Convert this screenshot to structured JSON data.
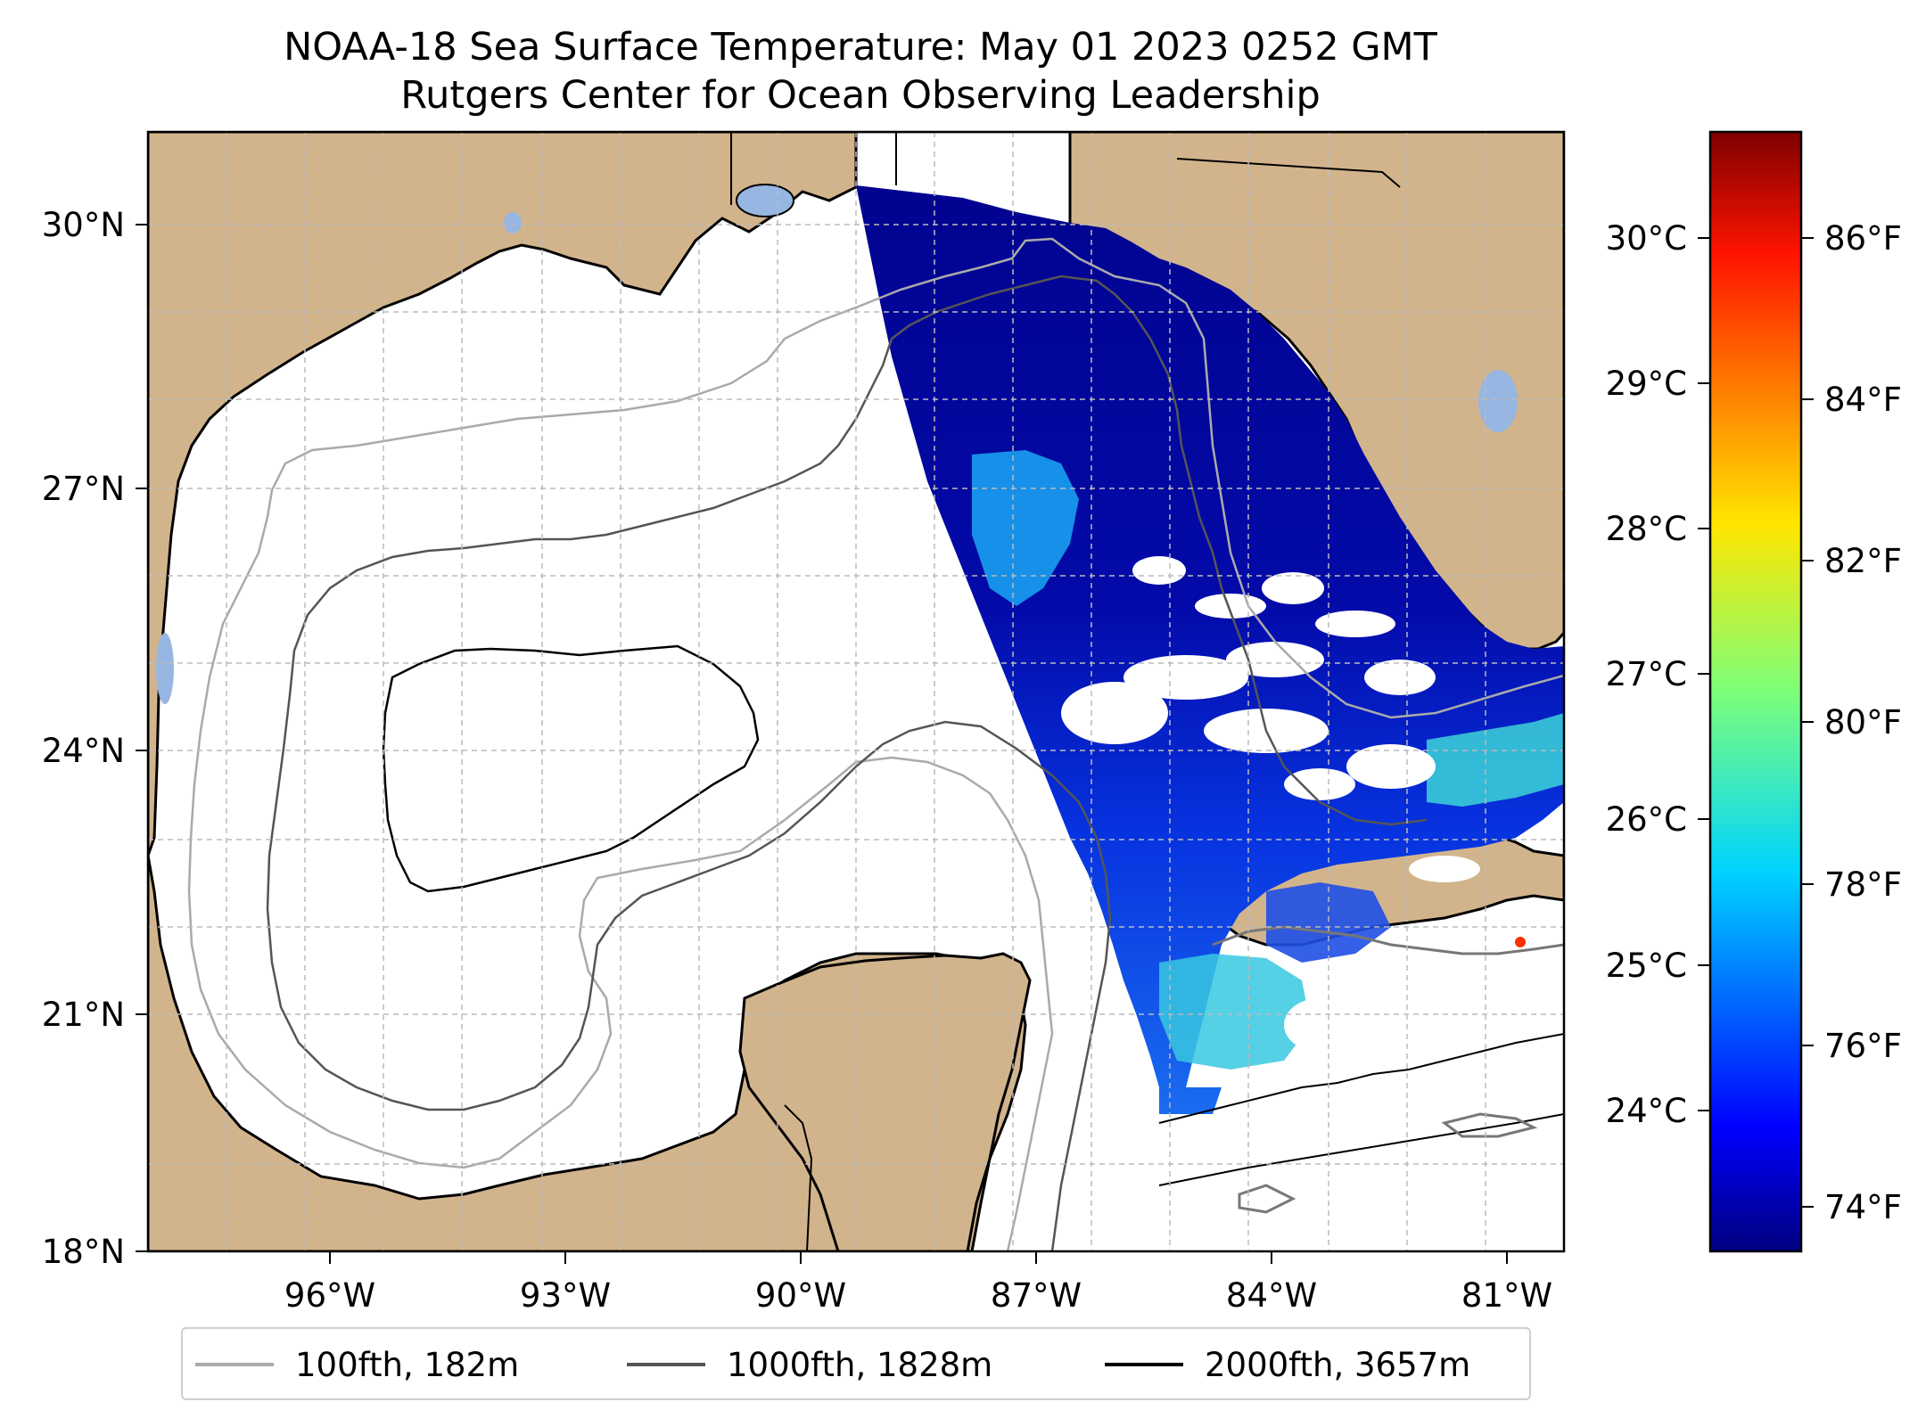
{
  "title": {
    "line1": "NOAA-18 Sea Surface Temperature: May 01 2023 0252 GMT",
    "line2": "Rutgers Center for Ocean Observing Leadership"
  },
  "map": {
    "region": "Gulf of Mexico",
    "lon_range": [
      -98.0,
      -80.2
    ],
    "lat_range": [
      18.0,
      31.0
    ],
    "gridlines": true,
    "colors": {
      "land": "#d2b48c",
      "ocean_nodata": "#ffffff",
      "lakes": "#97b6e1",
      "coastline": "#000000"
    },
    "lat_ticks": [
      "30°N",
      "27°N",
      "24°N",
      "21°N",
      "18°N"
    ],
    "lon_ticks": [
      "96°W",
      "93°W",
      "90°W",
      "87°W",
      "84°W",
      "81°W"
    ]
  },
  "colorbar": {
    "colormap": "jet",
    "celsius_ticks": [
      "30°C",
      "29°C",
      "28°C",
      "27°C",
      "26°C",
      "25°C",
      "24°C"
    ],
    "fahrenheit_ticks": [
      "86°F",
      "84°F",
      "82°F",
      "80°F",
      "78°F",
      "76°F",
      "74°F"
    ],
    "range_f": [
      73.4,
      87.3
    ]
  },
  "legend": {
    "items": [
      {
        "label": "100fth, 182m",
        "color": "#aaaaaa"
      },
      {
        "label": "1000fth, 1828m",
        "color": "#555555"
      },
      {
        "label": "2000fth, 3657m",
        "color": "#000000"
      }
    ]
  }
}
